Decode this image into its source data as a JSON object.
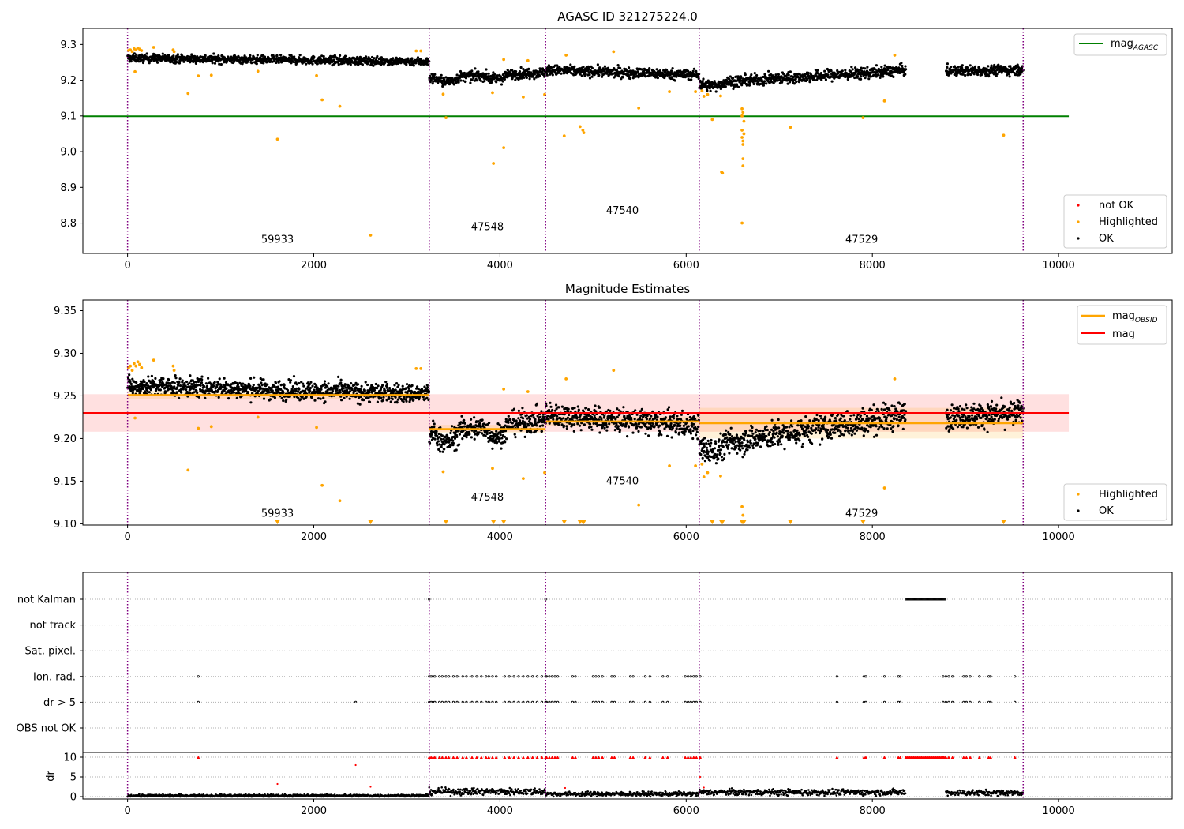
{
  "chart_data": [
    {
      "type": "scatter",
      "title": "AGASC ID 321275224.0",
      "xlim": [
        -480,
        11220
      ],
      "ylim": [
        8.715,
        9.345
      ],
      "xticks": [
        0,
        2000,
        4000,
        6000,
        8000,
        10000
      ],
      "yticks": [
        8.8,
        8.9,
        9.0,
        9.1,
        9.2,
        9.3
      ],
      "ytick_labels": [
        "8.8",
        "8.9",
        "9.0",
        "9.1",
        "9.2",
        "9.3"
      ],
      "obsid_boundaries": [
        0,
        3240,
        4490,
        6140,
        9620
      ],
      "obsid_labels": [
        {
          "text": "59933",
          "x": 1610,
          "y": 8.745
        },
        {
          "text": "47548",
          "x": 3865,
          "y": 8.78
        },
        {
          "text": "47540",
          "x": 5315,
          "y": 8.825
        },
        {
          "text": "47529",
          "x": 7885,
          "y": 8.745
        }
      ],
      "mag_agasc": 9.099,
      "ok_segments": [
        {
          "x0": 0,
          "x1": 3240,
          "y0": 9.262,
          "y1": 9.252,
          "noise": 0.008
        },
        {
          "x0": 3240,
          "x1": 4490,
          "y0": 9.205,
          "y1": 9.222,
          "noise": 0.01
        },
        {
          "x0": 4490,
          "x1": 6140,
          "y0": 9.228,
          "y1": 9.215,
          "noise": 0.01
        },
        {
          "x0": 6140,
          "x1": 8360,
          "y0": 9.19,
          "y1": 9.228,
          "noise": 0.011
        },
        {
          "x0": 8790,
          "x1": 9620,
          "y0": 9.225,
          "y1": 9.23,
          "noise": 0.01
        }
      ],
      "highlighted_points": [
        [
          10,
          9.283
        ],
        [
          30,
          9.285
        ],
        [
          50,
          9.28
        ],
        [
          70,
          9.288
        ],
        [
          90,
          9.285
        ],
        [
          110,
          9.29
        ],
        [
          130,
          9.287
        ],
        [
          150,
          9.283
        ],
        [
          80,
          9.224
        ],
        [
          280,
          9.292
        ],
        [
          490,
          9.285
        ],
        [
          500,
          9.28
        ],
        [
          650,
          9.163
        ],
        [
          760,
          9.212
        ],
        [
          900,
          9.214
        ],
        [
          1400,
          9.225
        ],
        [
          1610,
          9.035
        ],
        [
          2030,
          9.213
        ],
        [
          2090,
          9.145
        ],
        [
          2280,
          9.127
        ],
        [
          2610,
          8.766
        ],
        [
          3100,
          9.282
        ],
        [
          3150,
          9.282
        ],
        [
          3390,
          9.161
        ],
        [
          3420,
          9.095
        ],
        [
          3920,
          9.165
        ],
        [
          3930,
          8.967
        ],
        [
          4040,
          9.011
        ],
        [
          4040,
          9.258
        ],
        [
          4250,
          9.153
        ],
        [
          4300,
          9.255
        ],
        [
          4480,
          9.16
        ],
        [
          4690,
          9.044
        ],
        [
          4710,
          9.27
        ],
        [
          4860,
          9.07
        ],
        [
          4890,
          9.06
        ],
        [
          4900,
          9.053
        ],
        [
          5220,
          9.28
        ],
        [
          5490,
          9.122
        ],
        [
          5820,
          9.168
        ],
        [
          6100,
          9.168
        ],
        [
          6170,
          9.17
        ],
        [
          6190,
          9.155
        ],
        [
          6230,
          9.16
        ],
        [
          6280,
          9.09
        ],
        [
          6370,
          9.156
        ],
        [
          6380,
          8.943
        ],
        [
          6390,
          8.94
        ],
        [
          6600,
          8.8
        ],
        [
          6600,
          9.12
        ],
        [
          6600,
          9.1
        ],
        [
          6600,
          9.06
        ],
        [
          6600,
          9.04
        ],
        [
          6610,
          9.03
        ],
        [
          6610,
          9.02
        ],
        [
          6610,
          8.98
        ],
        [
          6610,
          8.96
        ],
        [
          6610,
          9.11
        ],
        [
          6620,
          9.085
        ],
        [
          6620,
          9.05
        ],
        [
          7120,
          9.068
        ],
        [
          7900,
          9.095
        ],
        [
          8130,
          9.142
        ],
        [
          8240,
          9.27
        ],
        [
          9410,
          9.046
        ]
      ],
      "legend_mag": {
        "label": "mag",
        "sub": "AGASC",
        "color": "#008000"
      },
      "legend_points": [
        {
          "label": "not OK",
          "color": "#ff0000"
        },
        {
          "label": "Highlighted",
          "color": "#ffa500"
        },
        {
          "label": "OK",
          "color": "#000000"
        }
      ]
    },
    {
      "type": "scatter",
      "title": "Magnitude Estimates",
      "xlim": [
        -480,
        11220
      ],
      "ylim": [
        9.0985,
        9.3625
      ],
      "xticks": [
        0,
        2000,
        4000,
        6000,
        8000,
        10000
      ],
      "yticks": [
        9.1,
        9.15,
        9.2,
        9.25,
        9.3,
        9.35
      ],
      "ytick_labels": [
        "9.10",
        "9.15",
        "9.20",
        "9.25",
        "9.30",
        "9.35"
      ],
      "obsid_boundaries": [
        0,
        3240,
        4490,
        6140,
        9620
      ],
      "obsid_labels": [
        {
          "text": "59933",
          "x": 1610,
          "y": 9.108
        },
        {
          "text": "47548",
          "x": 3865,
          "y": 9.127
        },
        {
          "text": "47540",
          "x": 5315,
          "y": 9.146
        },
        {
          "text": "47529",
          "x": 7885,
          "y": 9.108
        }
      ],
      "mag": 9.23,
      "mag_band": [
        9.208,
        9.252
      ],
      "mag_obsid": [
        {
          "x0": 0,
          "x1": 3240,
          "mag": 9.251,
          "lo": 9.246,
          "hi": 9.256
        },
        {
          "x0": 3240,
          "x1": 4490,
          "mag": 9.211,
          "lo": 9.206,
          "hi": 9.216
        },
        {
          "x0": 4490,
          "x1": 6140,
          "mag": 9.22,
          "lo": 9.215,
          "hi": 9.226
        },
        {
          "x0": 6140,
          "x1": 9620,
          "mag": 9.218,
          "lo": 9.2,
          "hi": 9.236
        }
      ],
      "ok_segments": [
        {
          "x0": 0,
          "x1": 3240,
          "y0": 9.262,
          "y1": 9.252,
          "noise": 0.008
        },
        {
          "x0": 3240,
          "x1": 4490,
          "y0": 9.205,
          "y1": 9.222,
          "noise": 0.01
        },
        {
          "x0": 4490,
          "x1": 6140,
          "y0": 9.228,
          "y1": 9.215,
          "noise": 0.01
        },
        {
          "x0": 6140,
          "x1": 8360,
          "y0": 9.19,
          "y1": 9.228,
          "noise": 0.011
        },
        {
          "x0": 8790,
          "x1": 9620,
          "y0": 9.225,
          "y1": 9.23,
          "noise": 0.01
        }
      ],
      "highlighted_points": [
        [
          10,
          9.283
        ],
        [
          30,
          9.285
        ],
        [
          50,
          9.28
        ],
        [
          70,
          9.288
        ],
        [
          90,
          9.285
        ],
        [
          110,
          9.29
        ],
        [
          130,
          9.287
        ],
        [
          150,
          9.283
        ],
        [
          80,
          9.224
        ],
        [
          280,
          9.292
        ],
        [
          490,
          9.285
        ],
        [
          500,
          9.28
        ],
        [
          650,
          9.163
        ],
        [
          760,
          9.212
        ],
        [
          900,
          9.214
        ],
        [
          1400,
          9.225
        ],
        [
          2030,
          9.213
        ],
        [
          2090,
          9.145
        ],
        [
          2280,
          9.127
        ],
        [
          3100,
          9.282
        ],
        [
          3150,
          9.282
        ],
        [
          3390,
          9.161
        ],
        [
          3920,
          9.165
        ],
        [
          4040,
          9.258
        ],
        [
          4250,
          9.153
        ],
        [
          4300,
          9.255
        ],
        [
          4480,
          9.16
        ],
        [
          4710,
          9.27
        ],
        [
          5220,
          9.28
        ],
        [
          5490,
          9.122
        ],
        [
          5820,
          9.168
        ],
        [
          6100,
          9.168
        ],
        [
          6170,
          9.17
        ],
        [
          6190,
          9.155
        ],
        [
          6230,
          9.16
        ],
        [
          6370,
          9.156
        ],
        [
          6600,
          9.12
        ],
        [
          6610,
          9.11
        ],
        [
          8130,
          9.142
        ],
        [
          8240,
          9.27
        ]
      ],
      "clipped_x": [
        1610,
        2610,
        3420,
        3930,
        4040,
        4690,
        4860,
        4890,
        4900,
        6280,
        6380,
        6390,
        6600,
        6610,
        6620,
        7120,
        7900,
        9410
      ],
      "legend_lines": [
        {
          "label": "mag",
          "sub": "OBSID",
          "color": "#ffa500"
        },
        {
          "label": "mag",
          "sub": "",
          "color": "#ff0000"
        }
      ],
      "legend_points": [
        {
          "label": "Highlighted",
          "color": "#ffa500"
        },
        {
          "label": "OK",
          "color": "#000000"
        }
      ]
    },
    {
      "type": "scatter",
      "title": "",
      "xlim": [
        -480,
        11220
      ],
      "xticks": [
        0,
        2000,
        4000,
        6000,
        8000,
        10000
      ],
      "obsid_boundaries": [
        0,
        3240,
        4490,
        6140,
        9620
      ],
      "flag_rows": [
        "not Kalman",
        "not track",
        "Sat. pixel.",
        "Ion. rad.",
        "dr > 5",
        "OBS not OK"
      ],
      "flag_events": {
        "not Kalman": [
          [
            8360,
            8790
          ]
        ],
        "Ion. rad.": [
          760,
          3240,
          3260,
          3280,
          3300,
          3350,
          3380,
          3420,
          3450,
          3500,
          3540,
          3600,
          3640,
          3700,
          3750,
          3800,
          3850,
          3880,
          3920,
          3960,
          4050,
          4100,
          4150,
          4200,
          4250,
          4300,
          4350,
          4400,
          4450,
          4490,
          4500,
          4530,
          4560,
          4590,
          4620,
          4780,
          4810,
          5000,
          5030,
          5060,
          5100,
          5200,
          5230,
          5400,
          5430,
          5560,
          5610,
          5750,
          5800,
          5990,
          6020,
          6050,
          6080,
          6110,
          6150,
          7620,
          7910,
          7930,
          8130,
          8280,
          8300,
          8760,
          8790,
          8820,
          8860,
          8980,
          9010,
          9050,
          9150,
          9250,
          9270,
          9530
        ],
        "dr > 5": [
          760,
          2450,
          3240,
          3260,
          3280,
          3300,
          3350,
          3380,
          3420,
          3450,
          3500,
          3540,
          3600,
          3640,
          3700,
          3750,
          3800,
          3850,
          3880,
          3920,
          3960,
          4050,
          4100,
          4150,
          4200,
          4250,
          4300,
          4350,
          4400,
          4450,
          4490,
          4500,
          4530,
          4560,
          4590,
          4620,
          4780,
          4810,
          5000,
          5030,
          5060,
          5100,
          5200,
          5230,
          5400,
          5430,
          5560,
          5610,
          5750,
          5800,
          5990,
          6020,
          6050,
          6080,
          6110,
          6150,
          7620,
          7910,
          7930,
          8130,
          8280,
          8300,
          8760,
          8790,
          8820,
          8860,
          8980,
          9010,
          9050,
          9150,
          9250,
          9270,
          9530
        ]
      },
      "dr_ylabel": "dr",
      "dr_yticks": [
        0,
        5,
        10
      ],
      "dr_ylim": [
        -0.6,
        11.2
      ],
      "dr_capped_x": [
        760,
        3240,
        3260,
        3280,
        3300,
        3350,
        3380,
        3420,
        3450,
        3500,
        3540,
        3600,
        3640,
        3700,
        3750,
        3800,
        3850,
        3880,
        3920,
        3960,
        4050,
        4100,
        4150,
        4200,
        4250,
        4300,
        4350,
        4400,
        4450,
        4490,
        4500,
        4530,
        4560,
        4590,
        4620,
        4780,
        4810,
        5000,
        5030,
        5060,
        5100,
        5200,
        5230,
        5400,
        5430,
        5560,
        5610,
        5750,
        5800,
        5990,
        6020,
        6050,
        6080,
        6110,
        6150,
        7620,
        7910,
        7930,
        8130,
        8280,
        8300,
        8760,
        8790,
        8820,
        8860,
        8980,
        9010,
        9050,
        9150,
        9250,
        9270,
        9530
      ],
      "dr_outliers": [
        [
          1610,
          3.2
        ],
        [
          2450,
          8.0
        ],
        [
          2610,
          2.5
        ],
        [
          6150,
          5.0
        ],
        [
          6190,
          2.3
        ],
        [
          4700,
          2.2
        ]
      ]
    }
  ]
}
